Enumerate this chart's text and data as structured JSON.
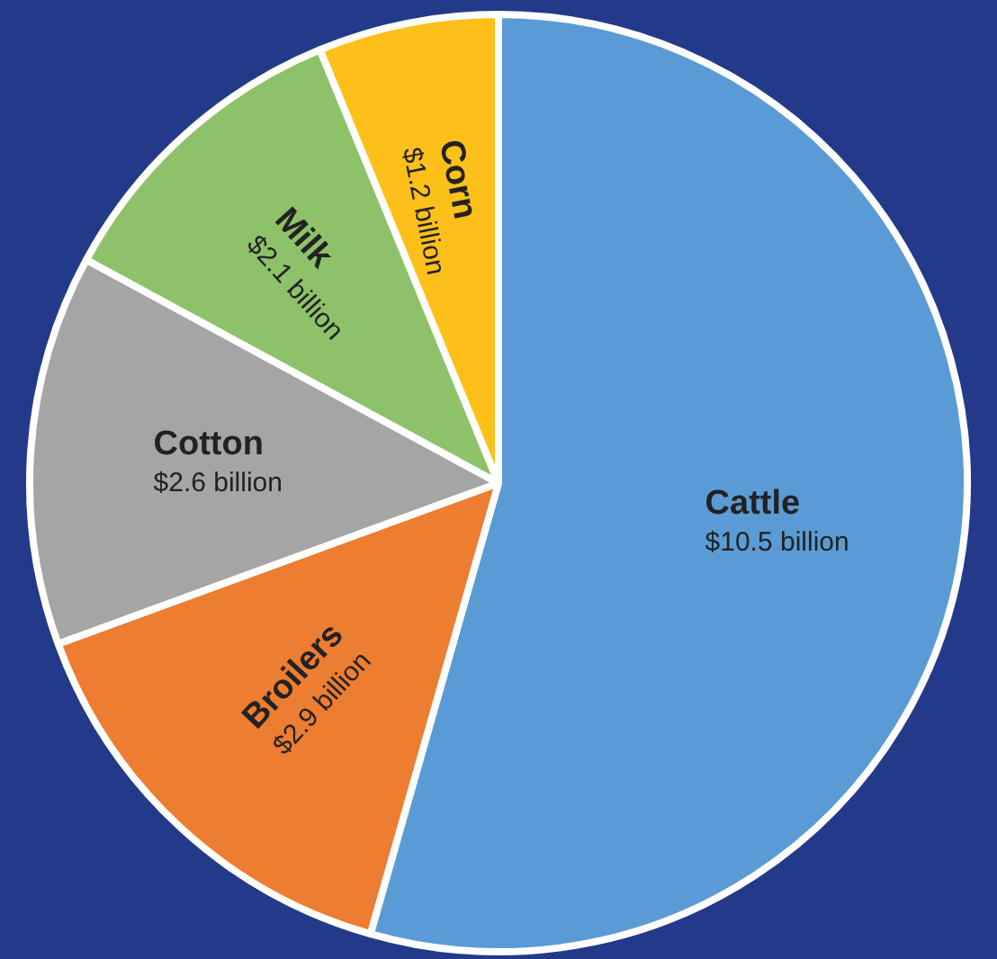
{
  "chart_data": {
    "type": "pie",
    "categories": [
      "Cattle",
      "Broilers",
      "Cotton",
      "Milk",
      "Corn"
    ],
    "values": [
      10.5,
      2.9,
      2.6,
      2.1,
      1.2
    ],
    "value_labels": [
      "$10.5 billion",
      "$2.9 billion",
      "$2.6 billion",
      "$2.1 billion",
      "$1.2 billion"
    ],
    "colors": [
      "#5b9bd5",
      "#ed7d31",
      "#a5a5a5",
      "#8dc26a",
      "#fdc01a"
    ],
    "legend": false
  }
}
